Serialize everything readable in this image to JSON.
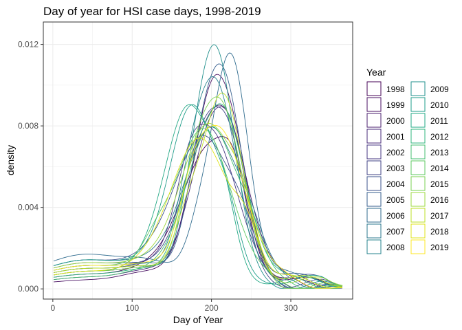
{
  "chart_data": {
    "type": "line",
    "title": "Day of year for HSI case days, 1998-2019",
    "xlabel": "Day of Year",
    "ylabel": "density",
    "xlim": [
      -12,
      378
    ],
    "ylim": [
      -0.0005,
      0.0131
    ],
    "x_ticks": [
      0,
      100,
      200,
      300
    ],
    "x_tick_labels": [
      "0",
      "100",
      "200",
      "300"
    ],
    "y_ticks": [
      0.0,
      0.004,
      0.008,
      0.012
    ],
    "y_tick_labels": [
      "0.000",
      "0.004",
      "0.008",
      "0.012"
    ],
    "grid": true,
    "legend": {
      "title": "Year",
      "position": "right",
      "columns": 2
    },
    "x_range": [
      1,
      365
    ],
    "series": [
      {
        "name": "1998",
        "color": "#440154",
        "start": 0.00025,
        "peak_day": 198,
        "peak": 0.0072,
        "spread": 35,
        "shoulder_day": 230,
        "shoulder": 0.0058
      },
      {
        "name": "1999",
        "color": "#470E61",
        "start": 0.00015,
        "peak_day": 206,
        "peak": 0.0111,
        "spread": 28,
        "shoulder_day": 240,
        "shoulder": 0.0036
      },
      {
        "name": "2000",
        "color": "#481C6E",
        "start": 0.0003,
        "peak_day": 214,
        "peak": 0.0092,
        "spread": 30,
        "shoulder_day": 180,
        "shoulder": 0.005
      },
      {
        "name": "2001",
        "color": "#472A7A",
        "start": 0.0002,
        "peak_day": 204,
        "peak": 0.0088,
        "spread": 29,
        "shoulder_day": 232,
        "shoulder": 0.0058
      },
      {
        "name": "2002",
        "color": "#453681",
        "start": 0.00035,
        "peak_day": 200,
        "peak": 0.0078,
        "spread": 32,
        "shoulder_day": 170,
        "shoulder": 0.005
      },
      {
        "name": "2003",
        "color": "#404386",
        "start": 0.0004,
        "peak_day": 198,
        "peak": 0.0086,
        "spread": 30,
        "shoulder_day": 228,
        "shoulder": 0.0062
      },
      {
        "name": "2004",
        "color": "#3B518B",
        "start": 0.0005,
        "peak_day": 190,
        "peak": 0.0075,
        "spread": 36,
        "shoulder_day": 240,
        "shoulder": 0.0035
      },
      {
        "name": "2005",
        "color": "#355E8D",
        "start": 0.00045,
        "peak_day": 212,
        "peak": 0.0112,
        "spread": 26,
        "shoulder_day": 180,
        "shoulder": 0.0045
      },
      {
        "name": "2006",
        "color": "#2F6B8E",
        "start": 0.0006,
        "peak_day": 224,
        "peak": 0.0118,
        "spread": 22,
        "shoulder_day": 185,
        "shoulder": 0.0055
      },
      {
        "name": "2007",
        "color": "#2A778E",
        "start": 0.0005,
        "peak_day": 200,
        "peak": 0.008,
        "spread": 34,
        "shoulder_day": 250,
        "shoulder": 0.0035
      },
      {
        "name": "2008",
        "color": "#25838E",
        "start": 0.0004,
        "peak_day": 204,
        "peak": 0.0106,
        "spread": 27,
        "shoulder_day": 170,
        "shoulder": 0.0048
      },
      {
        "name": "2009",
        "color": "#21908C",
        "start": 0.00035,
        "peak_day": 205,
        "peak": 0.0123,
        "spread": 24,
        "shoulder_day": 175,
        "shoulder": 0.004
      },
      {
        "name": "2010",
        "color": "#1E9C89",
        "start": 0.0005,
        "peak_day": 176,
        "peak": 0.009,
        "spread": 28,
        "shoulder_day": 220,
        "shoulder": 0.0066
      },
      {
        "name": "2011",
        "color": "#22A884",
        "start": 0.0003,
        "peak_day": 172,
        "peak": 0.0092,
        "spread": 30,
        "shoulder_day": 215,
        "shoulder": 0.0075
      },
      {
        "name": "2012",
        "color": "#2FB47C",
        "start": 0.00025,
        "peak_day": 212,
        "peak": 0.0095,
        "spread": 30,
        "shoulder_day": 170,
        "shoulder": 0.0058
      },
      {
        "name": "2013",
        "color": "#44BF70",
        "start": 0.0002,
        "peak_day": 200,
        "peak": 0.0084,
        "spread": 32,
        "shoulder_day": 250,
        "shoulder": 0.0042
      },
      {
        "name": "2014",
        "color": "#5EC962",
        "start": 0.0004,
        "peak_day": 190,
        "peak": 0.008,
        "spread": 34,
        "shoulder_day": 130,
        "shoulder": 0.0022
      },
      {
        "name": "2015",
        "color": "#7AD151",
        "start": 0.0003,
        "peak_day": 210,
        "peak": 0.0096,
        "spread": 28,
        "shoulder_day": 175,
        "shoulder": 0.0062
      },
      {
        "name": "2016",
        "color": "#9BD93C",
        "start": 0.00045,
        "peak_day": 196,
        "peak": 0.0082,
        "spread": 34,
        "shoulder_day": 240,
        "shoulder": 0.005
      },
      {
        "name": "2017",
        "color": "#BDDF26",
        "start": 0.00035,
        "peak_day": 214,
        "peak": 0.01,
        "spread": 26,
        "shoulder_day": 168,
        "shoulder": 0.0058
      },
      {
        "name": "2018",
        "color": "#DFE318",
        "start": 0.0003,
        "peak_day": 186,
        "peak": 0.0076,
        "spread": 36,
        "shoulder_day": 245,
        "shoulder": 0.0052
      },
      {
        "name": "2019",
        "color": "#FDE725",
        "start": 0.0004,
        "peak_day": 210,
        "peak": 0.008,
        "spread": 32,
        "shoulder_day": 175,
        "shoulder": 0.005
      }
    ]
  }
}
